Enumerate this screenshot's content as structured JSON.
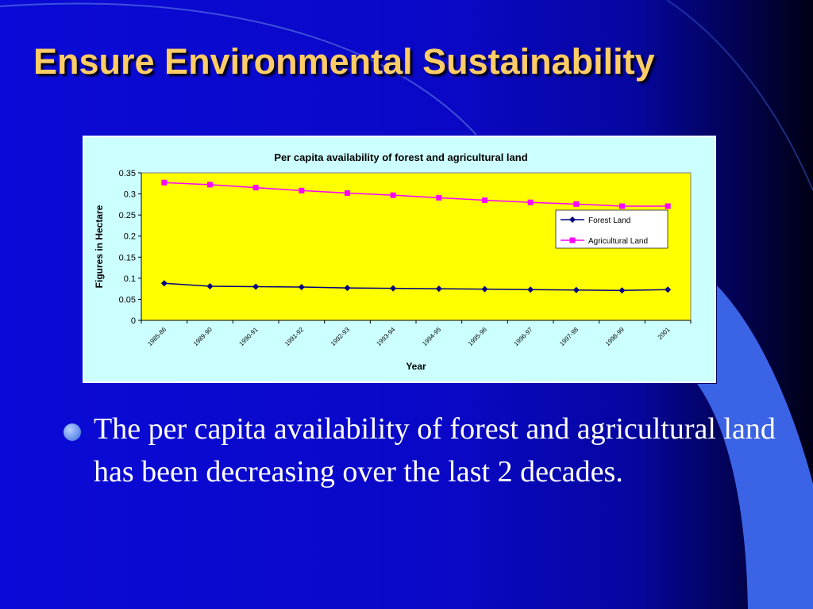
{
  "slide": {
    "title": "Ensure Environmental Sustainability",
    "bullet_text": "The per capita availability of forest and agricultural land has been decreasing over the last 2 decades."
  },
  "colors": {
    "title": "#ffcc66",
    "plot_background": "#ffff00",
    "chart_background": "#ccffff",
    "forest_series": "#000080",
    "agricultural_series": "#ff00ff",
    "bullet": "#6f98ee"
  },
  "chart_data": {
    "type": "line",
    "title": "Per capita availability of forest and agricultural land",
    "xlabel": "Year",
    "ylabel": "Figures in Hectare",
    "categories": [
      "1985-86",
      "1989-90",
      "1990-91",
      "1991-92",
      "1992-93",
      "1993-94",
      "1994-95",
      "1995-96",
      "1996-97",
      "1997-98",
      "1998-99",
      "2001"
    ],
    "y_ticks": [
      "0",
      "0.05",
      "0.1",
      "0.15",
      "0.2",
      "0.25",
      "0.3",
      "0.35"
    ],
    "ylim": [
      0,
      0.35
    ],
    "grid": false,
    "legend": "right",
    "series": [
      {
        "name": "Forest Land",
        "marker": "diamond",
        "color": "#000080",
        "values": [
          0.088,
          0.081,
          0.08,
          0.079,
          0.077,
          0.076,
          0.075,
          0.074,
          0.073,
          0.072,
          0.071,
          0.073
        ]
      },
      {
        "name": "Agricultural Land",
        "marker": "square",
        "color": "#ff00ff",
        "values": [
          0.327,
          0.322,
          0.315,
          0.308,
          0.302,
          0.297,
          0.291,
          0.285,
          0.28,
          0.276,
          0.271,
          0.271
        ]
      }
    ]
  }
}
